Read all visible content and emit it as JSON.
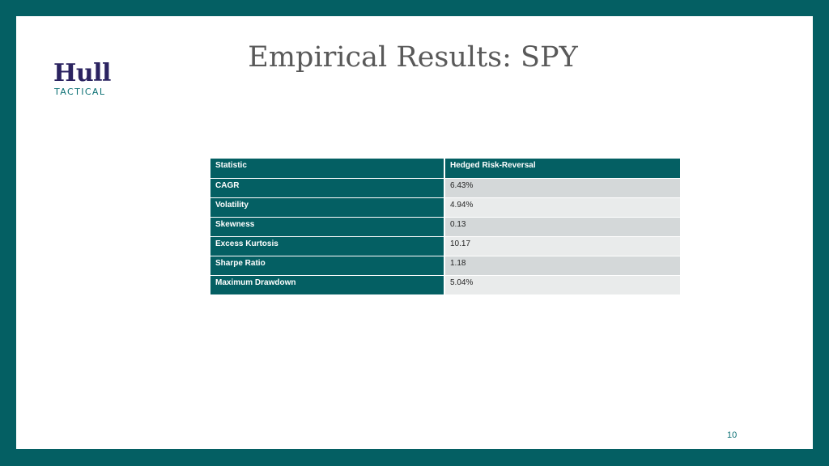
{
  "logo": {
    "word": "Hull",
    "sub": "TACTICAL"
  },
  "title": "Empirical Results: SPY",
  "table": {
    "headers": [
      "Statistic",
      "Hedged Risk-Reversal"
    ],
    "rows": [
      {
        "stat": "CAGR",
        "value": "6.43%"
      },
      {
        "stat": "Volatility",
        "value": "4.94%"
      },
      {
        "stat": "Skewness",
        "value": "0.13"
      },
      {
        "stat": "Excess Kurtosis",
        "value": "10.17"
      },
      {
        "stat": "Sharpe Ratio",
        "value": "1.18"
      },
      {
        "stat": "Maximum Drawdown",
        "value": "5.04%"
      }
    ]
  },
  "page_number": "10",
  "colors": {
    "brand_teal": "#045f63",
    "logo_navy": "#2b2360"
  }
}
